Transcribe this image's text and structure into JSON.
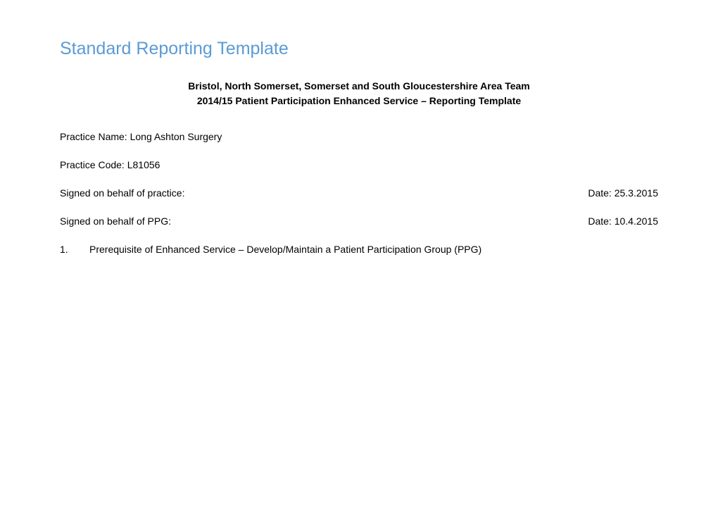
{
  "title": "Standard Reporting Template",
  "header": {
    "line1": "Bristol, North Somerset, Somerset and South Gloucestershire Area Team",
    "line2": "2014/15 Patient Participation Enhanced Service – Reporting Template"
  },
  "practiceNameLabel": "Practice Name: Long Ashton Surgery",
  "practiceCodeLabel": "Practice Code: L81056",
  "signedPractice": {
    "label": "Signed on behalf of practice:",
    "date": "Date: 25.3.2015"
  },
  "signedPPG": {
    "label": "Signed on behalf of PPG:",
    "date": "Date: 10.4.2015"
  },
  "item1": {
    "number": "1.",
    "text": "Prerequisite of Enhanced Service – Develop/Maintain a Patient Participation Group (PPG)"
  },
  "colors": {
    "title_color": "#5b9bd5",
    "text_color": "#000000",
    "background": "#ffffff"
  },
  "typography": {
    "title_fontsize": 25,
    "body_fontsize": 14,
    "header_bold": true,
    "font_family": "Arial, Helvetica, sans-serif"
  }
}
